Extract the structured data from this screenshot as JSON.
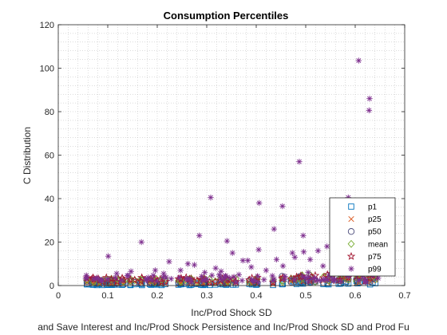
{
  "chart_data": {
    "type": "scatter",
    "title": "Consumption Percentiles",
    "xlabel": "Inc/Prod Shock SD",
    "ylabel": "C Distribution",
    "bottom_caption": "and Save Interest and Inc/Prod Shock Persistence and Inc/Prod Shock SD and Prod Fu",
    "xlim": [
      0,
      0.7
    ],
    "ylim": [
      0,
      120
    ],
    "x_ticks": [
      "0",
      "0.1",
      "0.2",
      "0.3",
      "0.4",
      "0.5",
      "0.6",
      "0.7"
    ],
    "y_ticks": [
      "0",
      "20",
      "40",
      "60",
      "80",
      "100",
      "120"
    ],
    "grid": "minor dotted",
    "legend_position": "bottom-right",
    "series": [
      {
        "name": "p1",
        "marker": "square",
        "color": "#0072BD"
      },
      {
        "name": "p25",
        "marker": "x",
        "color": "#D95319"
      },
      {
        "name": "p50",
        "marker": "circle",
        "color": "#4a4a7a"
      },
      {
        "name": "mean",
        "marker": "diamond",
        "color": "#77AC30"
      },
      {
        "name": "p75",
        "marker": "pentagram",
        "color": "#A2142F"
      },
      {
        "name": "p99",
        "marker": "asterisk",
        "color": "#7E2F8E"
      }
    ],
    "p99_points": [
      [
        0.607,
        103.5
      ],
      [
        0.629,
        86.0
      ],
      [
        0.628,
        80.6
      ],
      [
        0.487,
        57.0
      ],
      [
        0.308,
        40.5
      ],
      [
        0.586,
        40.5
      ],
      [
        0.406,
        38.0
      ],
      [
        0.453,
        36.5
      ],
      [
        0.589,
        33.0
      ],
      [
        0.62,
        31.0
      ],
      [
        0.436,
        26.0
      ],
      [
        0.587,
        25.0
      ],
      [
        0.629,
        24.0
      ],
      [
        0.495,
        23.0
      ],
      [
        0.285,
        23.0
      ],
      [
        0.341,
        20.5
      ],
      [
        0.168,
        20.0
      ],
      [
        0.543,
        18.0
      ],
      [
        0.525,
        16.0
      ],
      [
        0.405,
        16.5
      ],
      [
        0.473,
        15.0
      ],
      [
        0.352,
        15.0
      ],
      [
        0.496,
        15.5
      ],
      [
        0.616,
        15.0
      ],
      [
        0.101,
        13.5
      ],
      [
        0.478,
        13.0
      ],
      [
        0.571,
        13.0
      ],
      [
        0.373,
        11.5
      ],
      [
        0.383,
        11.5
      ],
      [
        0.224,
        11.0
      ],
      [
        0.509,
        12.0
      ],
      [
        0.262,
        10.0
      ],
      [
        0.441,
        12.0
      ],
      [
        0.275,
        9.5
      ],
      [
        0.535,
        9.0
      ],
      [
        0.318,
        8.0
      ],
      [
        0.39,
        8.5
      ],
      [
        0.454,
        9.0
      ],
      [
        0.601,
        9.0
      ],
      [
        0.196,
        7.0
      ],
      [
        0.247,
        7.0
      ],
      [
        0.147,
        6.5
      ],
      [
        0.329,
        6.5
      ],
      [
        0.42,
        7.0
      ],
      [
        0.559,
        7.5
      ],
      [
        0.636,
        8.0
      ],
      [
        0.118,
        5.5
      ],
      [
        0.213,
        5.5
      ],
      [
        0.296,
        6.0
      ],
      [
        0.365,
        5.0
      ],
      [
        0.505,
        6.0
      ],
      [
        0.578,
        6.0
      ]
    ]
  }
}
